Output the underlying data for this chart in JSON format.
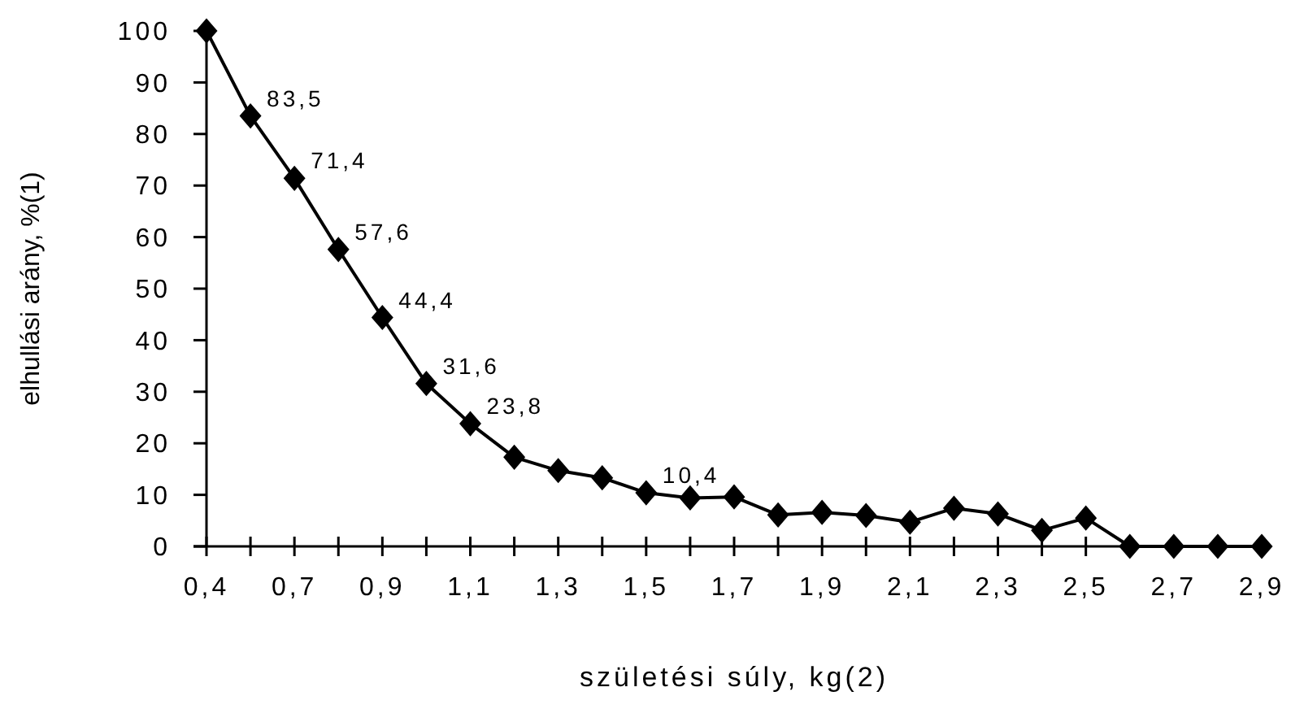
{
  "chart_data": {
    "type": "line",
    "xlabel": "születési súly, kg(2)",
    "ylabel": "elhullási arány, %(1)",
    "categories": [
      "0,4",
      null,
      "0,7",
      null,
      "0,9",
      null,
      "1,1",
      null,
      "1,3",
      null,
      "1,5",
      null,
      "1,7",
      null,
      "1,9",
      null,
      "2,1",
      null,
      "2,3",
      null,
      "2,5",
      null,
      "2,7",
      null,
      "2,9"
    ],
    "series": [
      {
        "color": "#000000",
        "values": [
          100,
          83.5,
          71.4,
          57.6,
          44.4,
          31.6,
          23.8,
          17.3,
          14.7,
          13.3,
          10.4,
          9.4,
          9.6,
          6.1,
          6.6,
          6.0,
          4.7,
          7.4,
          6.3,
          3.1,
          5.5,
          0,
          0,
          0,
          0
        ],
        "value_labels": [
          null,
          "83,5",
          "71,4",
          "57,6",
          "44,4",
          "31,6",
          "23,8",
          null,
          null,
          null,
          "10,4",
          null,
          null,
          null,
          null,
          null,
          null,
          null,
          null,
          null,
          null,
          null,
          null,
          null,
          null
        ]
      }
    ],
    "ylim": [
      0,
      100
    ],
    "yticks": [
      0,
      10,
      20,
      30,
      40,
      50,
      60,
      70,
      80,
      90,
      100
    ],
    "grid": false,
    "marker": "diamond",
    "line_style": "solid"
  }
}
